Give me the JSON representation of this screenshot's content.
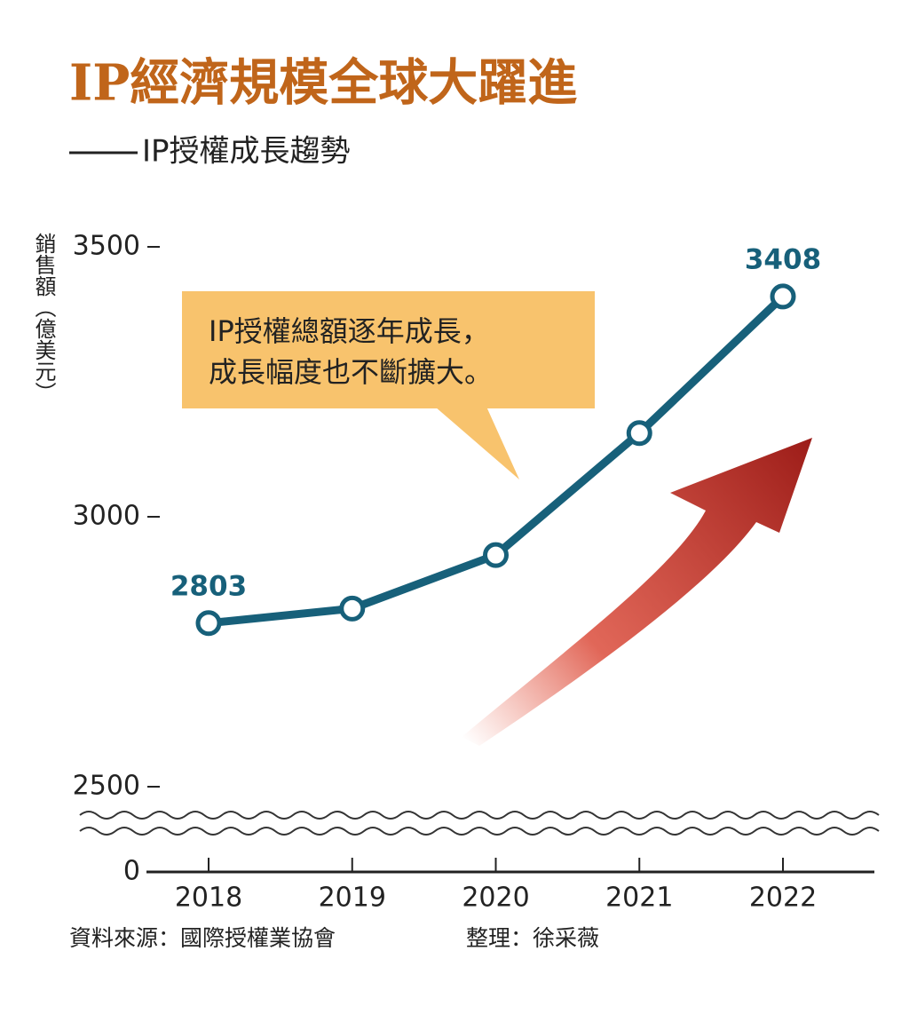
{
  "chart_data": {
    "type": "line",
    "title": "IP經濟規模全球大躍進",
    "subtitle": "IP授權成長趨勢",
    "y_label": "銷售額（億美元）",
    "annotation": [
      "IP授權總額逐年成長，",
      "成長幅度也不斷擴大。"
    ],
    "source": "資料來源：國際授權業協會",
    "credit": "整理：徐采薇",
    "categories": [
      "2018",
      "2019",
      "2020",
      "2021",
      "2022"
    ],
    "values": [
      2803,
      2830,
      2929,
      3155,
      3408
    ],
    "value_labels_at": "ends",
    "color": "#17607a",
    "title_color": "#c0651a",
    "annotation_color": "#f8c36d",
    "ylim": [
      0,
      3500
    ],
    "axis_break": [
      0,
      2500
    ],
    "yticks": [
      0,
      2500,
      3000,
      3500
    ]
  }
}
